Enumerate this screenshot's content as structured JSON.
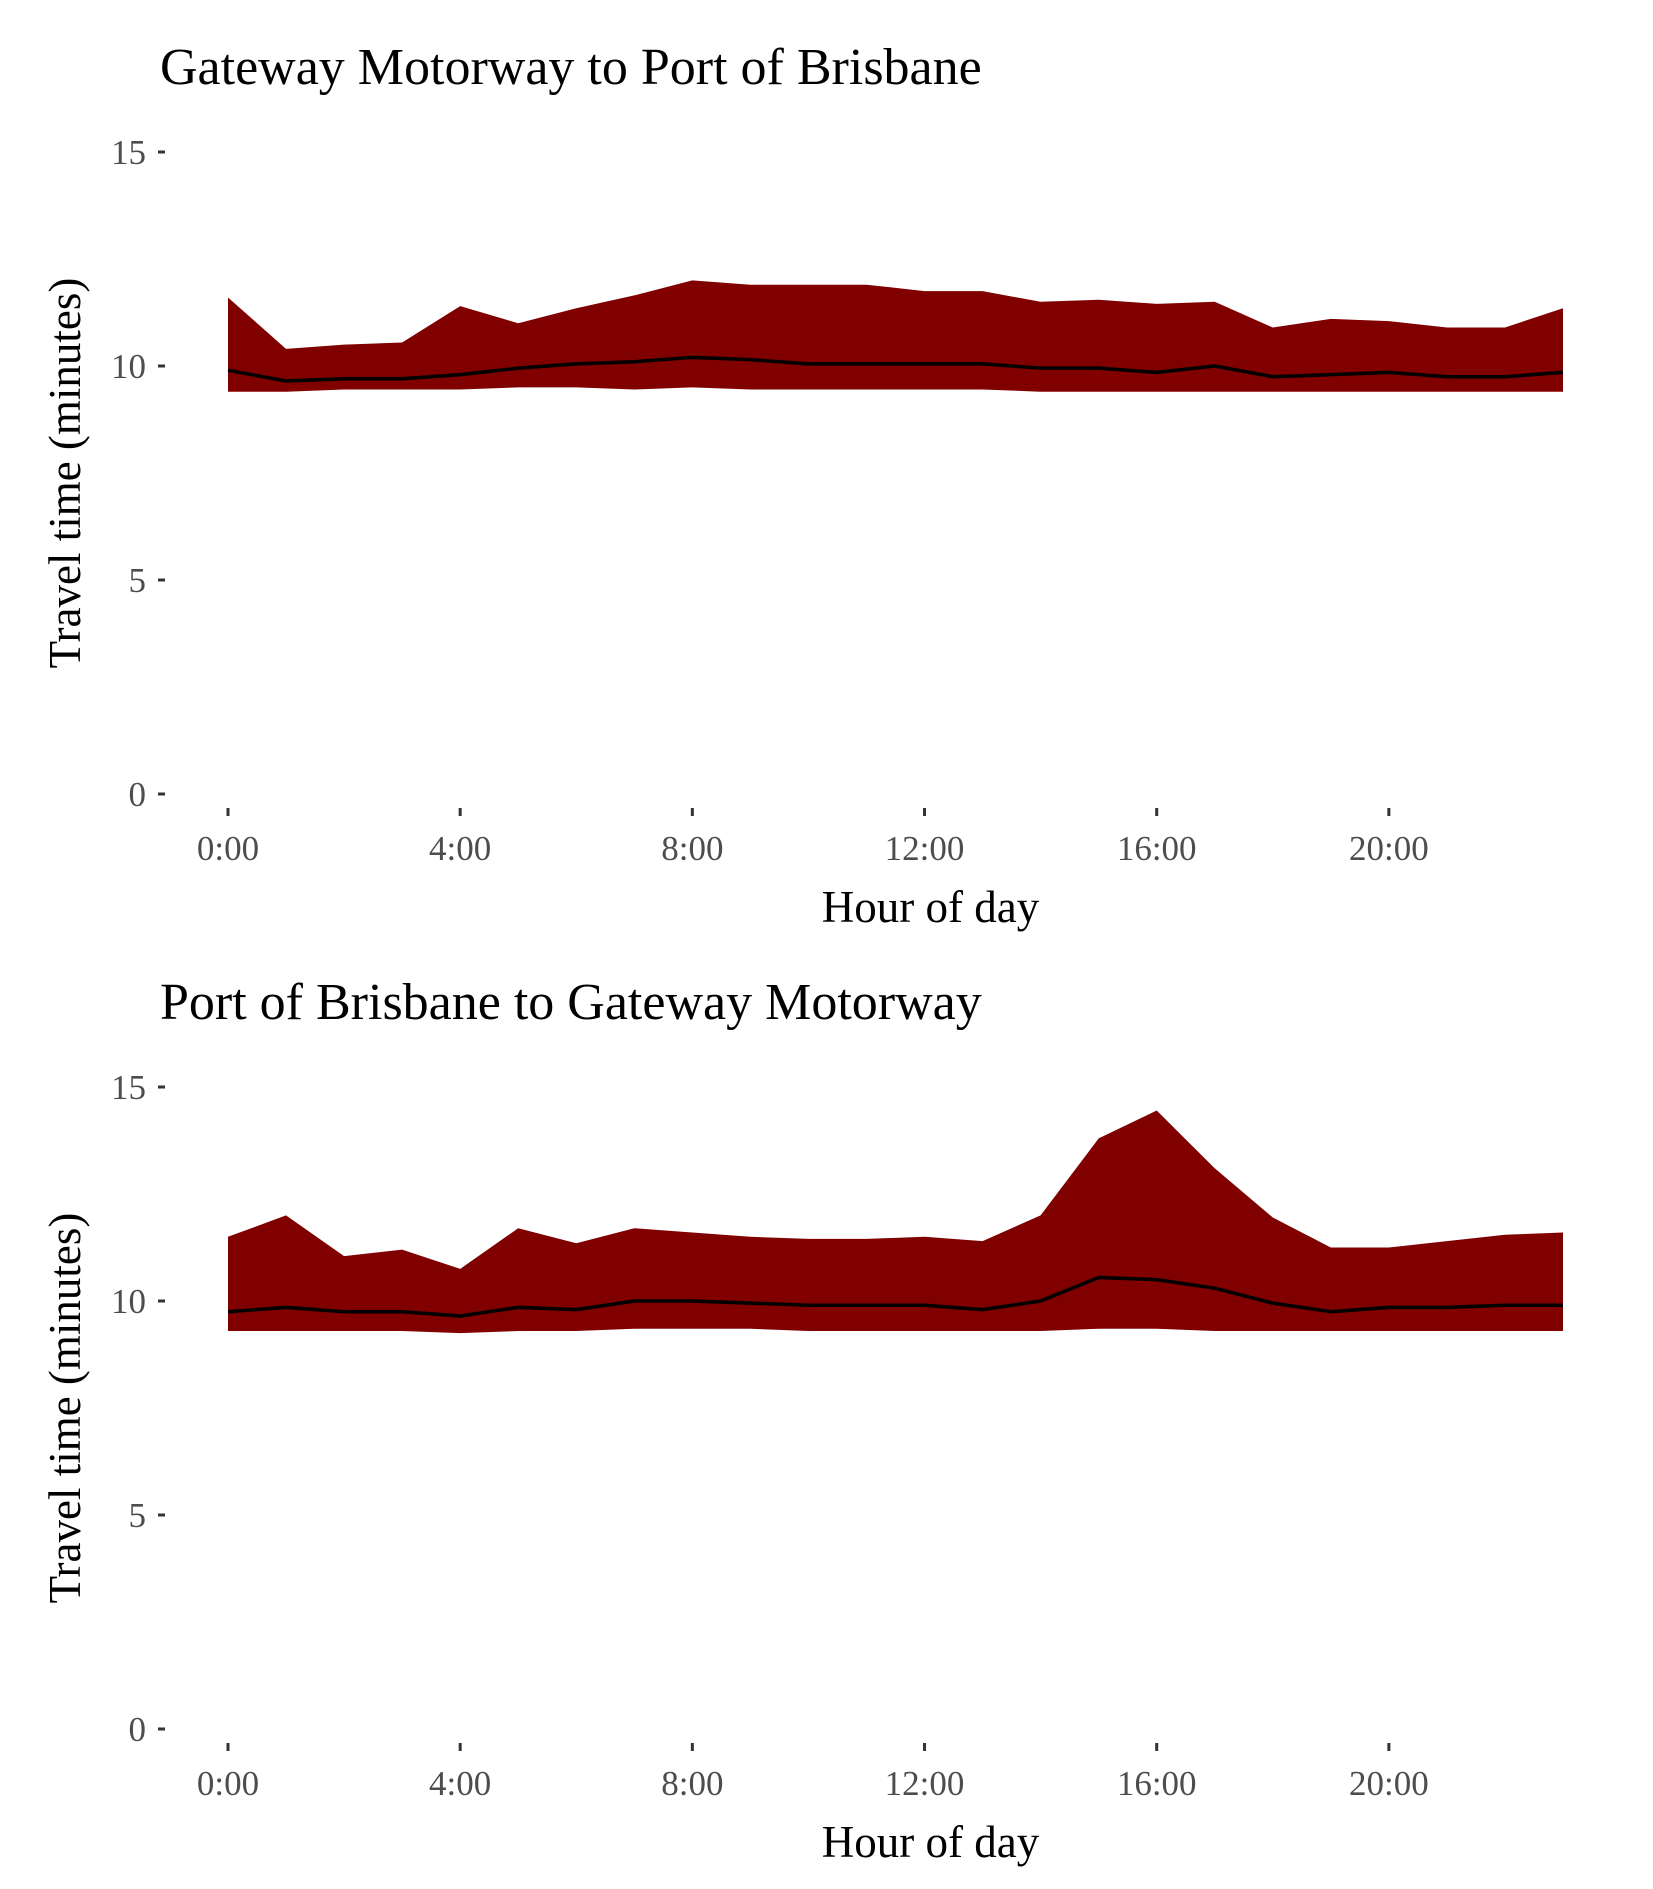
{
  "colors": {
    "band": "#800000",
    "median_line": "#000000",
    "tick_text": "#4d4d4d"
  },
  "chart_data": [
    {
      "type": "area",
      "title": "Gateway Motorway to Port of Brisbane",
      "xlabel": "Hour of day",
      "ylabel": "Travel time (minutes)",
      "ylim": [
        0,
        15
      ],
      "y_ticks": [
        0,
        5,
        10,
        15
      ],
      "x_ticks": [
        "0:00",
        "4:00",
        "8:00",
        "12:00",
        "16:00",
        "20:00"
      ],
      "x_tick_hours": [
        0,
        4,
        8,
        12,
        16,
        20
      ],
      "xlim": [
        0,
        23
      ],
      "grid": false,
      "hours": [
        0,
        1,
        2,
        3,
        4,
        5,
        6,
        7,
        8,
        9,
        10,
        11,
        12,
        13,
        14,
        15,
        16,
        17,
        18,
        19,
        20,
        21,
        22,
        23
      ],
      "band_upper": [
        11.6,
        10.4,
        10.5,
        10.55,
        11.4,
        11.0,
        11.35,
        11.65,
        12.0,
        11.9,
        11.9,
        11.9,
        11.75,
        11.75,
        11.5,
        11.55,
        11.45,
        11.5,
        10.9,
        11.1,
        11.05,
        10.9,
        10.9,
        11.35
      ],
      "band_lower": [
        9.4,
        9.4,
        9.45,
        9.45,
        9.45,
        9.5,
        9.5,
        9.45,
        9.5,
        9.45,
        9.45,
        9.45,
        9.45,
        9.45,
        9.4,
        9.4,
        9.4,
        9.4,
        9.4,
        9.4,
        9.4,
        9.4,
        9.4,
        9.4
      ],
      "median": [
        9.9,
        9.65,
        9.7,
        9.7,
        9.8,
        9.95,
        10.05,
        10.1,
        10.2,
        10.15,
        10.05,
        10.05,
        10.05,
        10.05,
        9.95,
        9.95,
        9.85,
        10.0,
        9.75,
        9.8,
        9.85,
        9.75,
        9.75,
        9.85
      ]
    },
    {
      "type": "area",
      "title": "Port of Brisbane to Gateway Motorway",
      "xlabel": "Hour of day",
      "ylabel": "Travel time (minutes)",
      "ylim": [
        0,
        15
      ],
      "y_ticks": [
        0,
        5,
        10,
        15
      ],
      "x_ticks": [
        "0:00",
        "4:00",
        "8:00",
        "12:00",
        "16:00",
        "20:00"
      ],
      "x_tick_hours": [
        0,
        4,
        8,
        12,
        16,
        20
      ],
      "xlim": [
        0,
        23
      ],
      "grid": false,
      "hours": [
        0,
        1,
        2,
        3,
        4,
        5,
        6,
        7,
        8,
        9,
        10,
        11,
        12,
        13,
        14,
        15,
        16,
        17,
        18,
        19,
        20,
        21,
        22,
        23
      ],
      "band_upper": [
        11.5,
        12.0,
        11.05,
        11.2,
        10.75,
        11.7,
        11.35,
        11.7,
        11.6,
        11.5,
        11.45,
        11.45,
        11.5,
        11.4,
        12.0,
        13.8,
        14.45,
        13.1,
        11.95,
        11.25,
        11.25,
        11.4,
        11.55,
        11.6
      ],
      "band_lower": [
        9.3,
        9.3,
        9.3,
        9.3,
        9.25,
        9.3,
        9.3,
        9.35,
        9.35,
        9.35,
        9.3,
        9.3,
        9.3,
        9.3,
        9.3,
        9.35,
        9.35,
        9.3,
        9.3,
        9.3,
        9.3,
        9.3,
        9.3,
        9.3
      ],
      "median": [
        9.75,
        9.85,
        9.75,
        9.75,
        9.65,
        9.85,
        9.8,
        10.0,
        10.0,
        9.95,
        9.9,
        9.9,
        9.9,
        9.8,
        10.0,
        10.55,
        10.5,
        10.3,
        9.95,
        9.75,
        9.85,
        9.85,
        9.9,
        9.9
      ]
    }
  ]
}
